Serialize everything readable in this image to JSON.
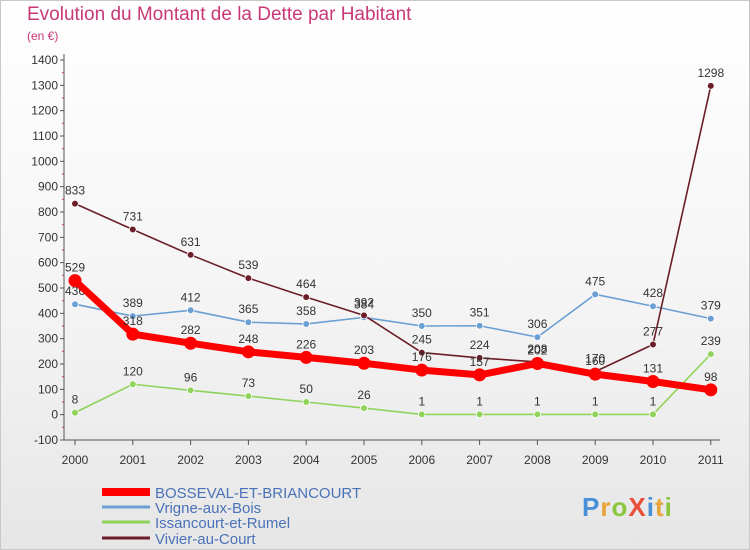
{
  "title": "Evolution du Montant de la Dette par Habitant",
  "subtitle": "(en €)",
  "logo_text": "ProXiti",
  "chart_data": {
    "type": "line",
    "title": "Evolution du Montant de la Dette par Habitant",
    "ylabel": "(en €)",
    "x": [
      "2000",
      "2001",
      "2002",
      "2003",
      "2004",
      "2005",
      "2006",
      "2007",
      "2008",
      "2009",
      "2010",
      "2011"
    ],
    "y_ticks": [
      "-100",
      "0",
      "100",
      "200",
      "300",
      "400",
      "500",
      "600",
      "700",
      "800",
      "900",
      "1000",
      "1100",
      "1200",
      "1300",
      "1400"
    ],
    "ylim": [
      -100,
      1400
    ],
    "grid": false,
    "legend_position": "bottom-left",
    "series": [
      {
        "name": "Vrigne-aux-Bois",
        "color": "#6a9fd3",
        "values": [
          436,
          389,
          412,
          365,
          358,
          384,
          350,
          351,
          306,
          475,
          428,
          379
        ],
        "labels": [
          "436",
          "389",
          "412",
          "365",
          "358",
          "384",
          "350",
          "351",
          "306",
          "475",
          "428",
          "379"
        ]
      },
      {
        "name": "Issancourt-et-Rumel",
        "color": "#8fd35a",
        "values": [
          8,
          120,
          96,
          73,
          50,
          26,
          1,
          1,
          1,
          1,
          1,
          239
        ],
        "labels": [
          "8",
          "120",
          "96",
          "73",
          "50",
          "26",
          "1",
          "1",
          "1",
          "1",
          "1",
          "239"
        ]
      },
      {
        "name": "Vivier-au-Court",
        "color": "#6b1e27",
        "values": [
          833,
          731,
          631,
          539,
          464,
          392,
          245,
          224,
          208,
          170,
          277,
          1298
        ],
        "labels": [
          "833",
          "731",
          "631",
          "539",
          "464",
          "392",
          "245",
          "224",
          "208",
          "170",
          "277",
          "1298"
        ]
      },
      {
        "name": "BOSSEVAL-ET-BRIANCOURT",
        "color": "#ff0000",
        "values": [
          529,
          318,
          282,
          248,
          226,
          203,
          176,
          157,
          202,
          160,
          131,
          98
        ],
        "labels": [
          "529",
          "318",
          "282",
          "248",
          "226",
          "203",
          "176",
          "157",
          "202",
          "160",
          "131",
          "98"
        ]
      }
    ],
    "legend": [
      "BOSSEVAL-ET-BRIANCOURT",
      "Vrigne-aux-Bois",
      "Issancourt-et-Rumel",
      "Vivier-au-Court"
    ]
  }
}
